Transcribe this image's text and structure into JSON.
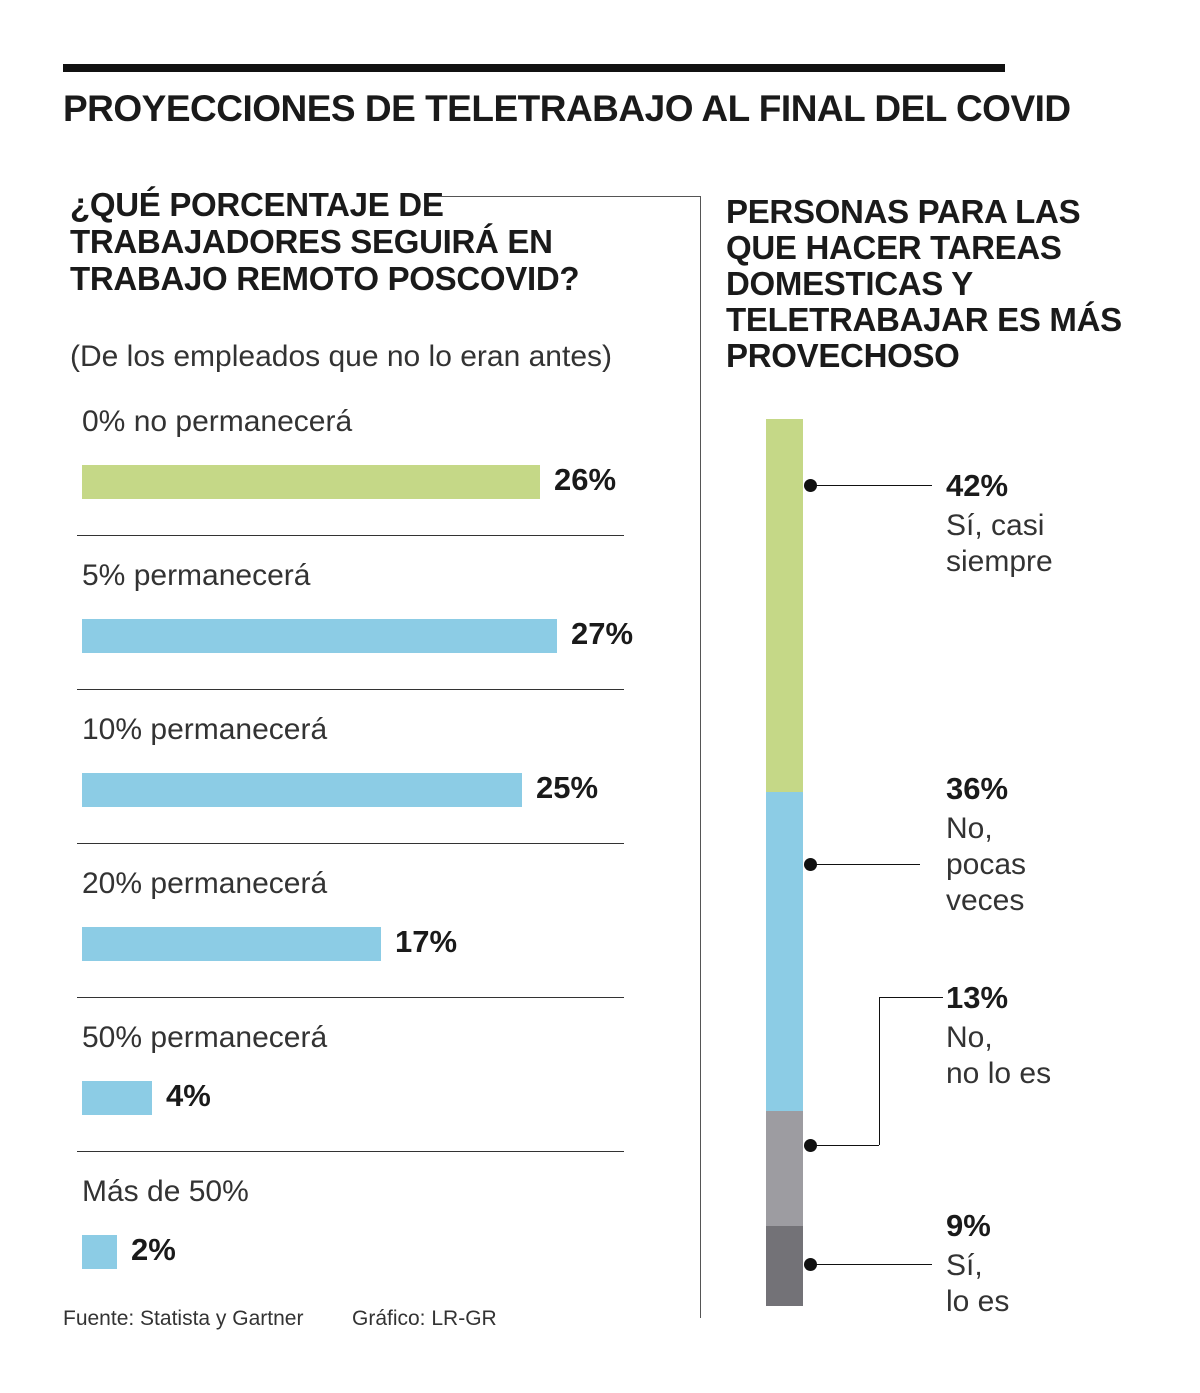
{
  "title": "PROYECCIONES DE TELETRABAJO AL FINAL DEL COVID",
  "left_panel": {
    "title": "¿QUÉ PORCENTAJE DE TRABAJADORES SEGUIRÁ EN TRABAJO REMOTO POSCOVID?",
    "subtitle": "(De los empleados que no lo eran antes)"
  },
  "right_panel": {
    "title": "PERSONAS PARA LAS QUE HACER TAREAS DOMESTICAS Y TELETRABAJAR ES MÁS PROVECHOSO"
  },
  "chart_data": [
    {
      "type": "bar",
      "orientation": "horizontal",
      "categories": [
        "0% no permanecerá",
        "5% permanecerá",
        "10% permanecerá",
        "20% permanecerá",
        "50% permanecerá",
        "Más de 50%"
      ],
      "values": [
        26,
        27,
        25,
        17,
        4,
        2
      ],
      "value_labels": [
        "26%",
        "27%",
        "25%",
        "17%",
        "4%",
        "2%"
      ],
      "unit": "%",
      "colors": [
        "#c5d887",
        "#8ccce5",
        "#8ccce5",
        "#8ccce5",
        "#8ccce5",
        "#8ccce5"
      ]
    },
    {
      "type": "bar",
      "stacked": true,
      "orientation": "vertical",
      "segments": [
        {
          "value": 42,
          "label": "42%",
          "description": "Sí, casi siempre",
          "color": "#c5d887"
        },
        {
          "value": 36,
          "label": "36%",
          "description": "No, pocas veces",
          "color": "#8ccce5"
        },
        {
          "value": 13,
          "label": "13%",
          "description": "No, no lo es",
          "color": "#9d9ca1"
        },
        {
          "value": 9,
          "label": "9%",
          "description": "Sí, lo es",
          "color": "#737277"
        }
      ]
    }
  ],
  "footer": {
    "source": "Fuente: Statista y Gartner",
    "credit": "Gráfico: LR-GR"
  }
}
